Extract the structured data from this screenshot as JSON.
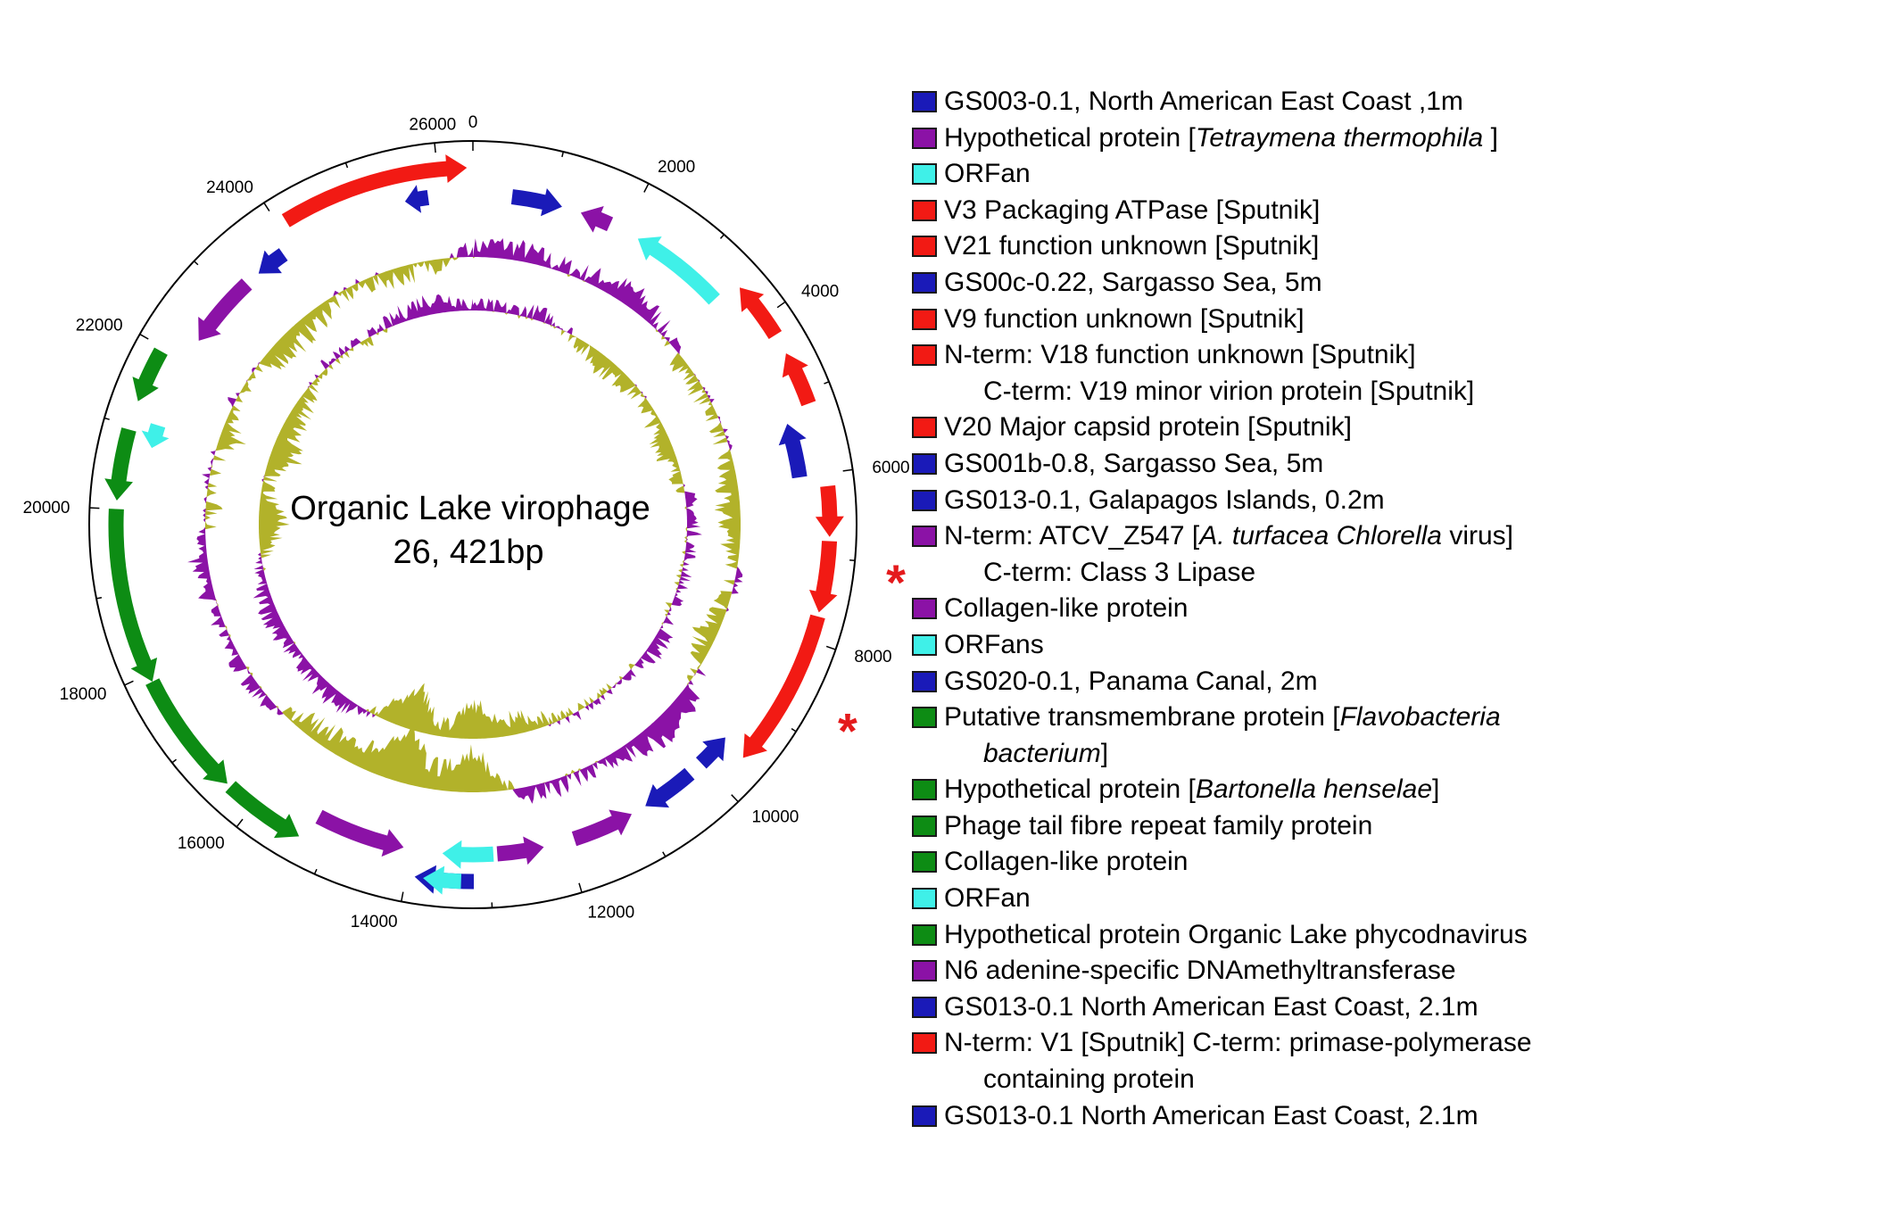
{
  "colors": {
    "blue": "#1a1ab8",
    "purple": "#8b12a6",
    "cyan": "#3ff0e8",
    "red": "#f21a14",
    "green": "#0d8c14",
    "olive": "#b2b22a",
    "legend_purple": "#8b12a6",
    "star": "#e41a1c"
  },
  "diagram": {
    "type": "circular-genome-map",
    "title_line1": "Organic Lake virophage",
    "title_line2": "26, 421bp",
    "genome_length_bp": 26421,
    "tick_labels": [
      "0",
      "2000",
      "4000",
      "6000",
      "8000",
      "10000",
      "12000",
      "14000",
      "16000",
      "18000",
      "20000",
      "22000",
      "24000",
      "26000"
    ],
    "tick_positions_bp": [
      0,
      2000,
      4000,
      6000,
      8000,
      10000,
      12000,
      14000,
      16000,
      18000,
      20000,
      22000,
      24000,
      26000
    ],
    "star_symbol": "*",
    "starred_genes_bp": [
      7150,
      8700
    ],
    "genes": [
      {
        "start": 500,
        "end": 1150,
        "strand": "+",
        "track": "inner",
        "color": "blue"
      },
      {
        "start": 1400,
        "end": 1800,
        "strand": "-",
        "track": "inner",
        "color": "purple"
      },
      {
        "start": 2200,
        "end": 3450,
        "strand": "-",
        "track": "inner",
        "color": "cyan"
      },
      {
        "start": 3550,
        "end": 4250,
        "strand": "-",
        "track": "outer",
        "color": "red"
      },
      {
        "start": 4500,
        "end": 5150,
        "strand": "-",
        "track": "outer",
        "color": "red"
      },
      {
        "start": 5300,
        "end": 6000,
        "strand": "-",
        "track": "inner",
        "color": "blue"
      },
      {
        "start": 6150,
        "end": 6750,
        "strand": "+",
        "track": "outer",
        "color": "red"
      },
      {
        "start": 6800,
        "end": 7650,
        "strand": "+",
        "track": "outer",
        "color": "red"
      },
      {
        "start": 7700,
        "end": 9600,
        "strand": "+",
        "track": "outer",
        "color": "red"
      },
      {
        "start": 9550,
        "end": 10000,
        "strand": "-",
        "track": "inner",
        "color": "blue"
      },
      {
        "start": 10200,
        "end": 10900,
        "strand": "+",
        "track": "inner",
        "color": "blue"
      },
      {
        "start": 11100,
        "end": 11900,
        "strand": "-",
        "track": "inner",
        "color": "purple"
      },
      {
        "start": 12300,
        "end": 12900,
        "strand": "-",
        "track": "inner",
        "color": "purple"
      },
      {
        "start": 12950,
        "end": 13600,
        "strand": "+",
        "track": "inner",
        "color": "cyan"
      },
      {
        "start": 13200,
        "end": 13900,
        "strand": "+",
        "track": "outer",
        "color": "blue"
      },
      {
        "start": 13350,
        "end": 13800,
        "strand": "+",
        "track": "outer",
        "color": "cyan"
      },
      {
        "start": 14100,
        "end": 15250,
        "strand": "-",
        "track": "inner",
        "color": "purple"
      },
      {
        "start": 15350,
        "end": 16350,
        "strand": "-",
        "track": "outer",
        "color": "green"
      },
      {
        "start": 16400,
        "end": 17900,
        "strand": "-",
        "track": "outer",
        "color": "green"
      },
      {
        "start": 17900,
        "end": 20000,
        "strand": "-",
        "track": "outer",
        "color": "green"
      },
      {
        "start": 20100,
        "end": 20950,
        "strand": "-",
        "track": "outer",
        "color": "green"
      },
      {
        "start": 20800,
        "end": 21100,
        "strand": "-",
        "track": "inner",
        "color": "cyan"
      },
      {
        "start": 21300,
        "end": 21950,
        "strand": "-",
        "track": "outer",
        "color": "green"
      },
      {
        "start": 22300,
        "end": 23250,
        "strand": "-",
        "track": "inner",
        "color": "purple"
      },
      {
        "start": 23450,
        "end": 23850,
        "strand": "-",
        "track": "inner",
        "color": "blue"
      },
      {
        "start": 24100,
        "end": 26350,
        "strand": "+",
        "track": "outer",
        "color": "red"
      },
      {
        "start": 25550,
        "end": 25850,
        "strand": "-",
        "track": "inner",
        "color": "blue"
      }
    ]
  },
  "legend": [
    {
      "color": "blue",
      "parts": [
        {
          "t": "GS003-0.1, North American East Coast ,1m"
        }
      ]
    },
    {
      "color": "legend_purple",
      "parts": [
        {
          "t": "Hypothetical protein ["
        },
        {
          "t": "Tetraymena thermophila",
          "i": true
        },
        {
          "t": " ]"
        }
      ]
    },
    {
      "color": "cyan",
      "parts": [
        {
          "t": "ORFan"
        }
      ]
    },
    {
      "color": "red",
      "parts": [
        {
          "t": "V3 Packaging ATPase [Sputnik]"
        }
      ]
    },
    {
      "color": "red",
      "parts": [
        {
          "t": "V21  function unknown [Sputnik]"
        }
      ]
    },
    {
      "color": "blue",
      "parts": [
        {
          "t": "GS00c-0.22, Sargasso Sea, 5m"
        }
      ]
    },
    {
      "color": "red",
      "parts": [
        {
          "t": "V9 function unknown [Sputnik]"
        }
      ]
    },
    {
      "color": "red",
      "parts": [
        {
          "t": "N-term: V18 function unknown [Sputnik]"
        }
      ]
    },
    {
      "color": null,
      "parts": [
        {
          "t": "C-term: V19 minor virion protein [Sputnik]"
        }
      ]
    },
    {
      "color": "red",
      "parts": [
        {
          "t": "V20 Major capsid protein [Sputnik]"
        }
      ]
    },
    {
      "color": "blue",
      "parts": [
        {
          "t": "GS001b-0.8, Sargasso Sea, 5m"
        }
      ]
    },
    {
      "color": "blue",
      "parts": [
        {
          "t": "GS013-0.1, Galapagos Islands, 0.2m"
        }
      ]
    },
    {
      "color": "legend_purple",
      "parts": [
        {
          "t": " N-term: ATCV_Z547 ["
        },
        {
          "t": "A. turfacea Chlorella",
          "i": true
        },
        {
          "t": " virus]"
        }
      ]
    },
    {
      "color": null,
      "parts": [
        {
          "t": "C-term: Class 3 Lipase"
        }
      ]
    },
    {
      "color": "legend_purple",
      "parts": [
        {
          "t": "Collagen-like protein"
        }
      ]
    },
    {
      "color": "cyan",
      "parts": [
        {
          "t": "ORFans"
        }
      ]
    },
    {
      "color": "blue",
      "parts": [
        {
          "t": "GS020-0.1, Panama Canal, 2m"
        }
      ]
    },
    {
      "color": "green",
      "parts": [
        {
          "t": "Putative transmembrane protein ["
        },
        {
          "t": "Flavobacteria",
          "i": true
        }
      ]
    },
    {
      "color": null,
      "parts": [
        {
          "t": "bacterium",
          "i": true
        },
        {
          "t": "]"
        }
      ]
    },
    {
      "color": "green",
      "parts": [
        {
          "t": "Hypothetical protein ["
        },
        {
          "t": "Bartonella henselae",
          "i": true
        },
        {
          "t": "]"
        }
      ]
    },
    {
      "color": "green",
      "parts": [
        {
          "t": "Phage tail fibre repeat family protein"
        }
      ]
    },
    {
      "color": "green",
      "parts": [
        {
          "t": "Collagen-like protein"
        }
      ]
    },
    {
      "color": "cyan",
      "parts": [
        {
          "t": "ORFan"
        }
      ]
    },
    {
      "color": "green",
      "parts": [
        {
          "t": "Hypothetical protein Organic Lake phycodnavirus"
        }
      ]
    },
    {
      "color": "legend_purple",
      "parts": [
        {
          "t": "N6 adenine-specific DNAmethyltransferase"
        }
      ]
    },
    {
      "color": "blue",
      "parts": [
        {
          "t": "GS013-0.1 North American East Coast, 2.1m"
        }
      ]
    },
    {
      "color": "red",
      "parts": [
        {
          "t": "N-term: V1 [Sputnik] C-term: primase-polymerase"
        }
      ]
    },
    {
      "color": null,
      "parts": [
        {
          "t": "containing protein"
        }
      ]
    },
    {
      "color": "blue",
      "parts": [
        {
          "t": "GS013-0.1 North American East Coast, 2.1m"
        }
      ]
    }
  ]
}
